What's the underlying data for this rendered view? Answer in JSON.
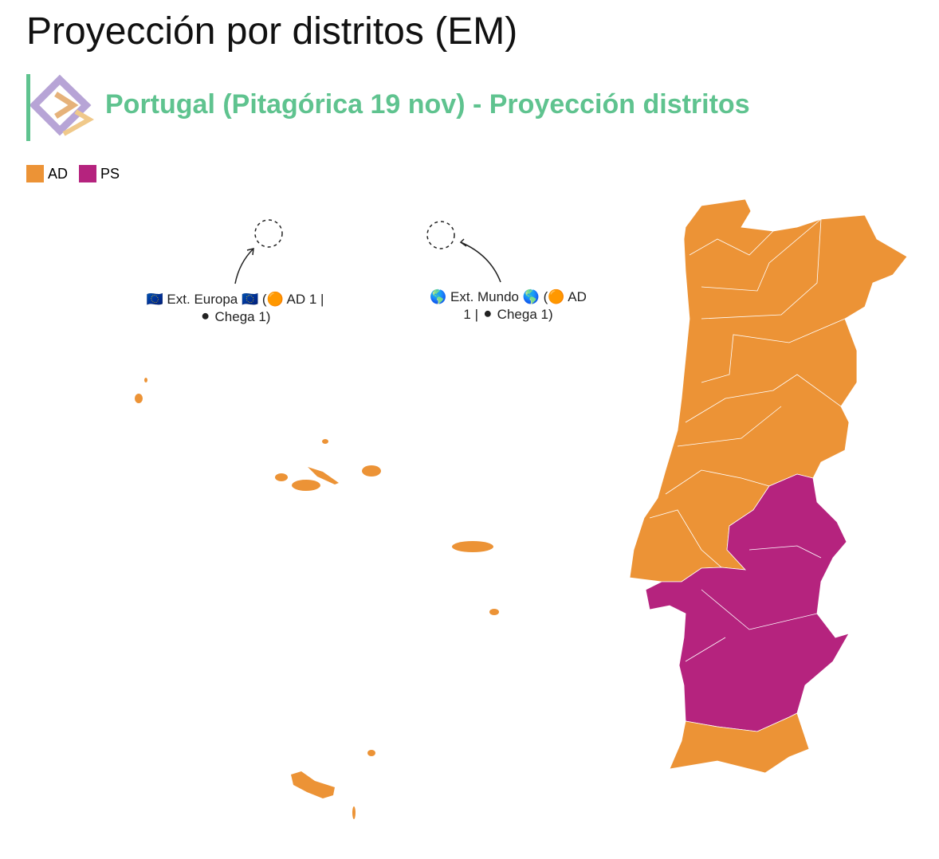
{
  "header": {
    "title": "Proyección por distritos (EM)",
    "subtitle": "Portugal (Pitagórica 19 nov) - Proyección distritos"
  },
  "legend": [
    {
      "name": "AD",
      "color": "#ec9336"
    },
    {
      "name": "PS",
      "color": "#b5237e"
    }
  ],
  "annotations": [
    "🇪🇺 Ext. Europa 🇪🇺 (🟠 AD 1 | ⚫ Chega 1)",
    "🌎 Ext. Mundo 🌎 (🟠 AD 1 | ⚫ Chega 1)"
  ]
}
